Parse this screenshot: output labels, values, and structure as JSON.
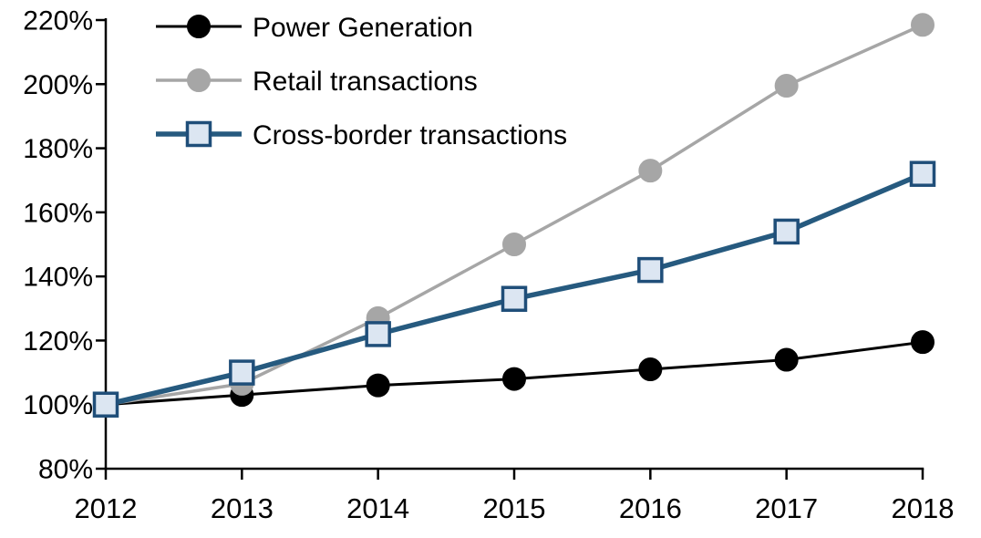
{
  "chart_data": {
    "type": "line",
    "title": "",
    "xlabel": "",
    "ylabel": "",
    "x_categories": [
      "2012",
      "2013",
      "2014",
      "2015",
      "2016",
      "2017",
      "2018"
    ],
    "y_min": 80,
    "y_max": 220,
    "y_tick_step": 20,
    "y_tick_labels": [
      "80%",
      "100%",
      "120%",
      "140%",
      "160%",
      "180%",
      "200%",
      "220%"
    ],
    "y_unit": "%",
    "grid": false,
    "legend_position": "top-left-inside",
    "axis_color": "#000000",
    "background_color": "#ffffff",
    "series": [
      {
        "name": "Power Generation",
        "color": "#000000",
        "line_width": 3,
        "marker": "circle",
        "marker_fill": "#000000",
        "marker_stroke": "#000000",
        "values": [
          100,
          103,
          106,
          108,
          111,
          114,
          119.5
        ]
      },
      {
        "name": "Retail transactions",
        "color": "#A6A6A6",
        "line_width": 3.5,
        "marker": "circle",
        "marker_fill": "#A6A6A6",
        "marker_stroke": "#A6A6A6",
        "values": [
          100,
          106.5,
          127,
          150,
          173,
          199.5,
          218.5
        ]
      },
      {
        "name": "Cross-border transactions",
        "color": "#265A7F",
        "line_width": 5.5,
        "marker": "square",
        "marker_fill": "#DCE6F2",
        "marker_stroke": "#1F4E79",
        "values": [
          100,
          110,
          122,
          133,
          142,
          154,
          172
        ]
      }
    ]
  }
}
